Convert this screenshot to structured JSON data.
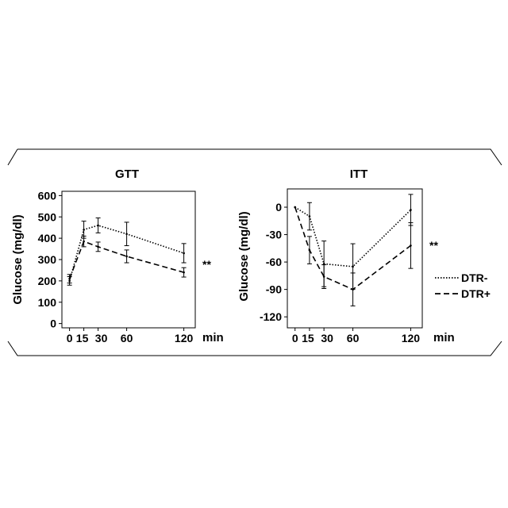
{
  "chart_data": [
    {
      "type": "line",
      "title": "GTT",
      "ylabel": "Glucose (mg/dl)",
      "xlabel": "min",
      "x": [
        0,
        15,
        30,
        60,
        120
      ],
      "x_tick_labels": [
        "0",
        "15",
        "30",
        "60",
        "120"
      ],
      "ylim": [
        -20,
        620
      ],
      "y_ticks": [
        0,
        100,
        200,
        300,
        400,
        500,
        600
      ],
      "xlim": [
        -8,
        132
      ],
      "series": [
        {
          "name": "DTR-",
          "style": "dotted",
          "values": [
            200,
            440,
            460,
            420,
            330
          ],
          "errors": [
            20,
            40,
            35,
            55,
            45
          ]
        },
        {
          "name": "DTR+",
          "style": "dashed",
          "values": [
            210,
            385,
            360,
            315,
            240
          ],
          "errors": [
            20,
            25,
            22,
            30,
            22
          ]
        }
      ],
      "annotation": "**",
      "grid": false
    },
    {
      "type": "line",
      "title": "ITT",
      "ylabel": "Glucose (mg/dl)",
      "xlabel": "min",
      "x": [
        0,
        15,
        30,
        60,
        120
      ],
      "x_tick_labels": [
        "0",
        "15",
        "30",
        "60",
        "120"
      ],
      "ylim": [
        -132,
        20
      ],
      "y_ticks": [
        0,
        -30,
        -60,
        -90,
        -120
      ],
      "xlim": [
        -8,
        132
      ],
      "series": [
        {
          "name": "DTR-",
          "style": "dotted",
          "values": [
            0,
            -10,
            -62,
            -65,
            -3
          ],
          "errors": [
            0,
            15,
            25,
            25,
            17
          ]
        },
        {
          "name": "DTR+",
          "style": "dashed",
          "values": [
            0,
            -47,
            -76,
            -90,
            -42
          ],
          "errors": [
            0,
            15,
            13,
            18,
            25
          ]
        }
      ],
      "annotation": "**",
      "grid": false,
      "legend": "right"
    }
  ],
  "legend": {
    "items": [
      {
        "label": "DTR-",
        "style": "dotted"
      },
      {
        "label": "DTR+",
        "style": "dashed"
      }
    ]
  }
}
